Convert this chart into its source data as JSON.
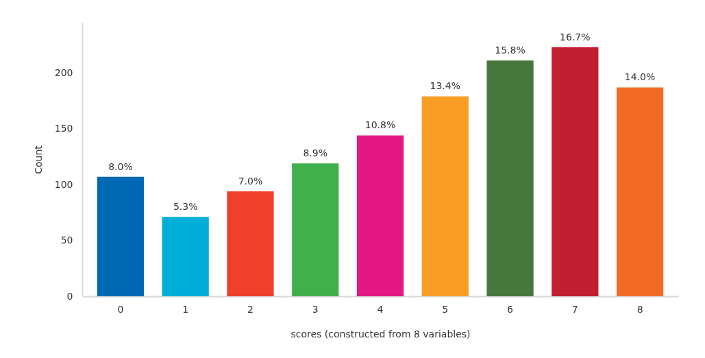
{
  "chart_data": {
    "type": "bar",
    "xlabel": "scores (constructed from 8 variables)",
    "ylabel": "Count",
    "categories": [
      "0",
      "1",
      "2",
      "3",
      "4",
      "5",
      "6",
      "7",
      "8"
    ],
    "values": [
      107,
      71,
      94,
      119,
      144,
      179,
      211,
      223,
      187
    ],
    "colors": [
      "#0069b4",
      "#00afd9",
      "#ef402c",
      "#40b04d",
      "#e31784",
      "#f99d25",
      "#47773c",
      "#c11f32",
      "#f16b25"
    ],
    "annotations": [
      {
        "text": "8.0%",
        "x": "0",
        "y": 107
      },
      {
        "text": "5.3%",
        "x": "1",
        "y": 71
      },
      {
        "text": "7.0%",
        "x": "2",
        "y": 94
      },
      {
        "text": "8.9%",
        "x": "3",
        "y": 119
      },
      {
        "text": "10.8%",
        "x": "4",
        "y": 144
      },
      {
        "text": "13.4%",
        "x": "5",
        "y": 179
      },
      {
        "text": "15.8%",
        "x": "6",
        "y": 211
      },
      {
        "text": "16.7%",
        "x": "7",
        "y": 223
      },
      {
        "text": "14.0%",
        "x": "8",
        "y": 187
      }
    ],
    "ylim": [
      0,
      245
    ],
    "yticks": [
      0,
      50,
      100,
      150,
      200
    ],
    "grid": false
  }
}
